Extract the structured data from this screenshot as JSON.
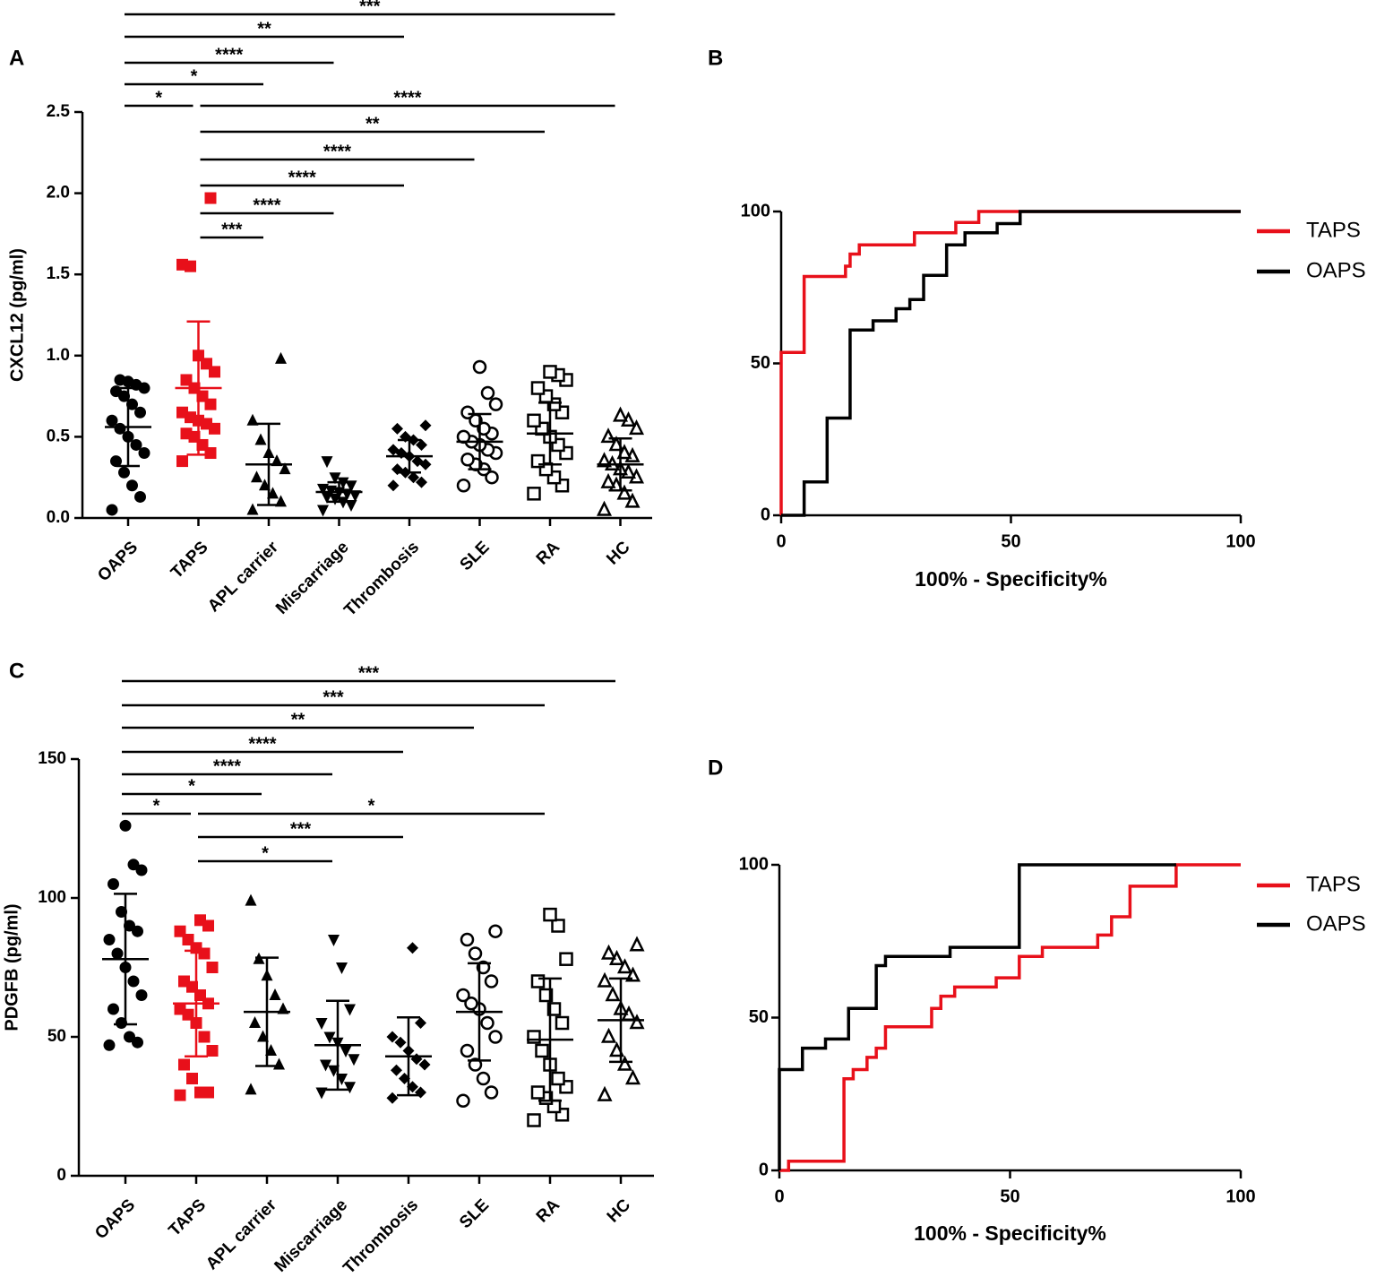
{
  "chart_data": [
    {
      "type": "dotplot",
      "panel": "A",
      "ylabel": "CXCL12 (pg/ml)",
      "ylim": [
        0,
        2.5
      ],
      "yticks": [
        {
          "value": 0,
          "label": "0.0"
        },
        {
          "value": 0.5,
          "label": "0.5"
        },
        {
          "value": 1,
          "label": "1.0"
        },
        {
          "value": 1.5,
          "label": "1.5"
        },
        {
          "value": 2,
          "label": "2.0"
        },
        {
          "value": 2.5,
          "label": "2.5"
        }
      ],
      "groups": [
        {
          "name": "OAPS",
          "color": "#000000",
          "marker": "circle",
          "mean": 0.56,
          "sd": 0.24,
          "values": [
            0.05,
            0.13,
            0.2,
            0.28,
            0.35,
            0.4,
            0.45,
            0.5,
            0.55,
            0.6,
            0.65,
            0.7,
            0.75,
            0.78,
            0.8,
            0.82,
            0.84,
            0.85
          ]
        },
        {
          "name": "TAPS",
          "color": "#e8101a",
          "marker": "square",
          "mean": 0.8,
          "sd": 0.41,
          "values": [
            0.35,
            0.4,
            0.45,
            0.5,
            0.52,
            0.55,
            0.58,
            0.6,
            0.62,
            0.65,
            0.7,
            0.75,
            0.8,
            0.85,
            0.9,
            0.95,
            1.0,
            1.55,
            1.56,
            1.97
          ]
        },
        {
          "name": "APL carrier",
          "color": "#000000",
          "marker": "triangle",
          "mean": 0.33,
          "sd": 0.25,
          "values": [
            0.05,
            0.1,
            0.15,
            0.2,
            0.25,
            0.3,
            0.35,
            0.4,
            0.48,
            0.6,
            0.98
          ]
        },
        {
          "name": "Miscarriage",
          "color": "#000000",
          "marker": "triangle-down",
          "mean": 0.16,
          "sd": 0.06,
          "values": [
            0.05,
            0.08,
            0.1,
            0.12,
            0.13,
            0.14,
            0.15,
            0.16,
            0.17,
            0.18,
            0.2,
            0.22,
            0.25,
            0.35
          ]
        },
        {
          "name": "Thrombosis",
          "color": "#000000",
          "marker": "diamond",
          "mean": 0.38,
          "sd": 0.1,
          "values": [
            0.2,
            0.22,
            0.25,
            0.28,
            0.3,
            0.33,
            0.35,
            0.38,
            0.4,
            0.42,
            0.45,
            0.48,
            0.5,
            0.55,
            0.57
          ]
        },
        {
          "name": "SLE",
          "color": "#000000",
          "marker": "circle-open",
          "mean": 0.47,
          "sd": 0.17,
          "values": [
            0.2,
            0.25,
            0.3,
            0.33,
            0.36,
            0.4,
            0.42,
            0.45,
            0.47,
            0.5,
            0.52,
            0.55,
            0.6,
            0.65,
            0.7,
            0.77,
            0.93
          ]
        },
        {
          "name": "RA",
          "color": "#000000",
          "marker": "square-open",
          "mean": 0.52,
          "sd": 0.19,
          "values": [
            0.15,
            0.2,
            0.25,
            0.3,
            0.35,
            0.4,
            0.45,
            0.5,
            0.55,
            0.6,
            0.65,
            0.7,
            0.75,
            0.8,
            0.85,
            0.88,
            0.9
          ]
        },
        {
          "name": "HC",
          "color": "#000000",
          "marker": "triangle-open",
          "mean": 0.33,
          "sd": 0.16,
          "values": [
            0.05,
            0.1,
            0.15,
            0.2,
            0.22,
            0.25,
            0.28,
            0.3,
            0.33,
            0.35,
            0.38,
            0.4,
            0.45,
            0.5,
            0.55,
            0.6,
            0.63
          ]
        }
      ],
      "comparisons": [
        {
          "from": 0,
          "to": 7,
          "label": "***"
        },
        {
          "from": 0,
          "to": 4,
          "label": "**"
        },
        {
          "from": 0,
          "to": 3,
          "label": "****"
        },
        {
          "from": 0,
          "to": 2,
          "label": "*"
        },
        {
          "from": 0,
          "to": 1,
          "label": "*"
        },
        {
          "from": 1,
          "to": 7,
          "label": "****"
        },
        {
          "from": 1,
          "to": 6,
          "label": "**"
        },
        {
          "from": 1,
          "to": 5,
          "label": "****"
        },
        {
          "from": 1,
          "to": 4,
          "label": "****"
        },
        {
          "from": 1,
          "to": 3,
          "label": "****"
        },
        {
          "from": 1,
          "to": 2,
          "label": "***"
        }
      ]
    },
    {
      "type": "line",
      "panel": "B",
      "xlabel": "100% - Specificity%",
      "xlim": [
        0,
        100
      ],
      "xticks": [
        0,
        50,
        100
      ],
      "ylim": [
        0,
        100
      ],
      "yticks": [
        0,
        50,
        100
      ],
      "legend": "right",
      "series": [
        {
          "name": "TAPS",
          "color": "#e8101a",
          "x": [
            0,
            0,
            5,
            5,
            14,
            14,
            15,
            15,
            17,
            17,
            29,
            29,
            38,
            38,
            43,
            43,
            100
          ],
          "values": [
            0,
            53.6,
            53.6,
            78.6,
            78.6,
            82,
            82,
            86,
            86,
            89,
            89,
            93,
            93,
            96.4,
            96.4,
            100,
            100
          ]
        },
        {
          "name": "OAPS",
          "color": "#000000",
          "x": [
            0,
            5,
            5,
            10,
            10,
            15,
            15,
            20,
            20,
            25,
            25,
            28,
            28,
            31,
            31,
            36,
            36,
            40,
            40,
            47,
            47,
            52,
            52,
            100
          ],
          "values": [
            0,
            0,
            11,
            11,
            32,
            32,
            61,
            61,
            64,
            64,
            68,
            68,
            71,
            71,
            79,
            79,
            89,
            89,
            93,
            93,
            96,
            96,
            100,
            100
          ]
        }
      ]
    },
    {
      "type": "dotplot",
      "panel": "C",
      "ylabel": "PDGFB (pg/ml)",
      "ylim": [
        0,
        150
      ],
      "yticks": [
        0,
        50,
        100,
        150
      ],
      "groups": [
        {
          "name": "OAPS",
          "color": "#000000",
          "marker": "circle",
          "mean": 78,
          "sd": 23.5,
          "values": [
            47,
            48,
            50,
            55,
            60,
            65,
            70,
            75,
            80,
            85,
            88,
            90,
            95,
            105,
            110,
            112,
            126
          ]
        },
        {
          "name": "TAPS",
          "color": "#e8101a",
          "marker": "square",
          "mean": 62,
          "sd": 19,
          "values": [
            29,
            30,
            30,
            35,
            40,
            45,
            50,
            55,
            58,
            60,
            62,
            65,
            68,
            70,
            75,
            80,
            82,
            85,
            88,
            90,
            92
          ]
        },
        {
          "name": "APL carrier",
          "color": "#000000",
          "marker": "triangle",
          "mean": 59,
          "sd": 19.5,
          "values": [
            31,
            40,
            45,
            50,
            55,
            60,
            65,
            72,
            78,
            99
          ]
        },
        {
          "name": "Miscarriage",
          "color": "#000000",
          "marker": "triangle-down",
          "mean": 47,
          "sd": 16,
          "values": [
            30,
            32,
            35,
            38,
            40,
            42,
            45,
            48,
            50,
            55,
            60,
            75,
            85
          ]
        },
        {
          "name": "Thrombosis",
          "color": "#000000",
          "marker": "diamond",
          "mean": 43,
          "sd": 14,
          "values": [
            28,
            30,
            32,
            35,
            38,
            40,
            42,
            45,
            48,
            50,
            55,
            82
          ]
        },
        {
          "name": "SLE",
          "color": "#000000",
          "marker": "circle-open",
          "mean": 59,
          "sd": 17.5,
          "values": [
            27,
            30,
            35,
            40,
            45,
            50,
            55,
            60,
            62,
            65,
            70,
            75,
            80,
            85,
            88
          ]
        },
        {
          "name": "RA",
          "color": "#000000",
          "marker": "square-open",
          "mean": 49,
          "sd": 22,
          "values": [
            20,
            22,
            25,
            28,
            30,
            32,
            35,
            40,
            45,
            50,
            55,
            60,
            65,
            70,
            78,
            90,
            94
          ]
        },
        {
          "name": "HC",
          "color": "#000000",
          "marker": "triangle-open",
          "mean": 56,
          "sd": 15,
          "values": [
            29,
            35,
            40,
            45,
            50,
            55,
            58,
            60,
            65,
            70,
            72,
            75,
            78,
            80,
            83
          ]
        }
      ],
      "comparisons": [
        {
          "from": 0,
          "to": 7,
          "label": "***"
        },
        {
          "from": 0,
          "to": 6,
          "label": "***"
        },
        {
          "from": 0,
          "to": 5,
          "label": "**"
        },
        {
          "from": 0,
          "to": 4,
          "label": "****"
        },
        {
          "from": 0,
          "to": 3,
          "label": "****"
        },
        {
          "from": 0,
          "to": 2,
          "label": "*"
        },
        {
          "from": 0,
          "to": 1,
          "label": "*"
        },
        {
          "from": 1,
          "to": 6,
          "label": "*"
        },
        {
          "from": 1,
          "to": 4,
          "label": "***"
        },
        {
          "from": 1,
          "to": 3,
          "label": "*"
        }
      ]
    },
    {
      "type": "line",
      "panel": "D",
      "xlabel": "100% - Specificity%",
      "xlim": [
        0,
        100
      ],
      "xticks": [
        0,
        50,
        100
      ],
      "ylim": [
        0,
        100
      ],
      "yticks": [
        0,
        50,
        100
      ],
      "legend": "right",
      "series": [
        {
          "name": "TAPS",
          "color": "#e8101a",
          "x": [
            0,
            2,
            2,
            14,
            14,
            16,
            16,
            19,
            19,
            21,
            21,
            23,
            23,
            33,
            33,
            35,
            35,
            38,
            38,
            47,
            47,
            52,
            52,
            57,
            57,
            69,
            69,
            72,
            72,
            76,
            76,
            86,
            86,
            100
          ],
          "values": [
            0,
            0,
            3,
            3,
            30,
            30,
            33,
            33,
            37,
            37,
            40,
            40,
            47,
            47,
            53,
            53,
            57,
            57,
            60,
            60,
            63,
            63,
            70,
            70,
            73,
            73,
            77,
            77,
            83,
            83,
            93,
            93,
            100,
            100
          ]
        },
        {
          "name": "OAPS",
          "color": "#000000",
          "x": [
            0,
            0,
            5,
            5,
            10,
            10,
            15,
            15,
            21,
            21,
            23,
            23,
            37,
            37,
            52,
            52,
            86
          ],
          "values": [
            0,
            33,
            33,
            40,
            40,
            43,
            43,
            53,
            53,
            67,
            67,
            70,
            70,
            73,
            73,
            100,
            100
          ]
        }
      ]
    }
  ]
}
